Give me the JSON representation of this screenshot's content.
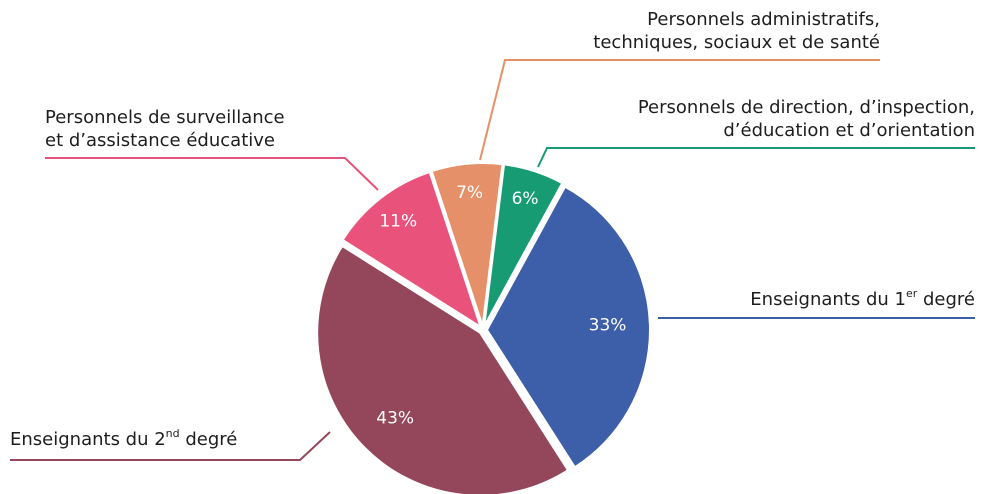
{
  "chart_data": {
    "type": "pie",
    "categories": [
      [
        [
          "Personnels de direction, d’inspection,"
        ],
        [
          "d’éducation et d’orientation"
        ]
      ],
      [
        [
          "Enseignants du 1",
          "er",
          " degré"
        ]
      ],
      [
        [
          "Enseignants du 2",
          "nd",
          " degré"
        ]
      ],
      [
        [
          "Personnels de surveillance"
        ],
        [
          "et d’assistance éducative"
        ]
      ],
      [
        [
          "Personnels administratifs,"
        ],
        [
          "techniques, sociaux et de santé"
        ]
      ]
    ],
    "values": [
      6,
      33,
      43,
      11,
      7
    ],
    "value_labels": [
      "6%",
      "33%",
      "43%",
      "11%",
      "7%"
    ],
    "colors": [
      "#169b73",
      "#3d5ea8",
      "#94475b",
      "#e9527b",
      "#e6906a"
    ],
    "start_angle": 7
  }
}
